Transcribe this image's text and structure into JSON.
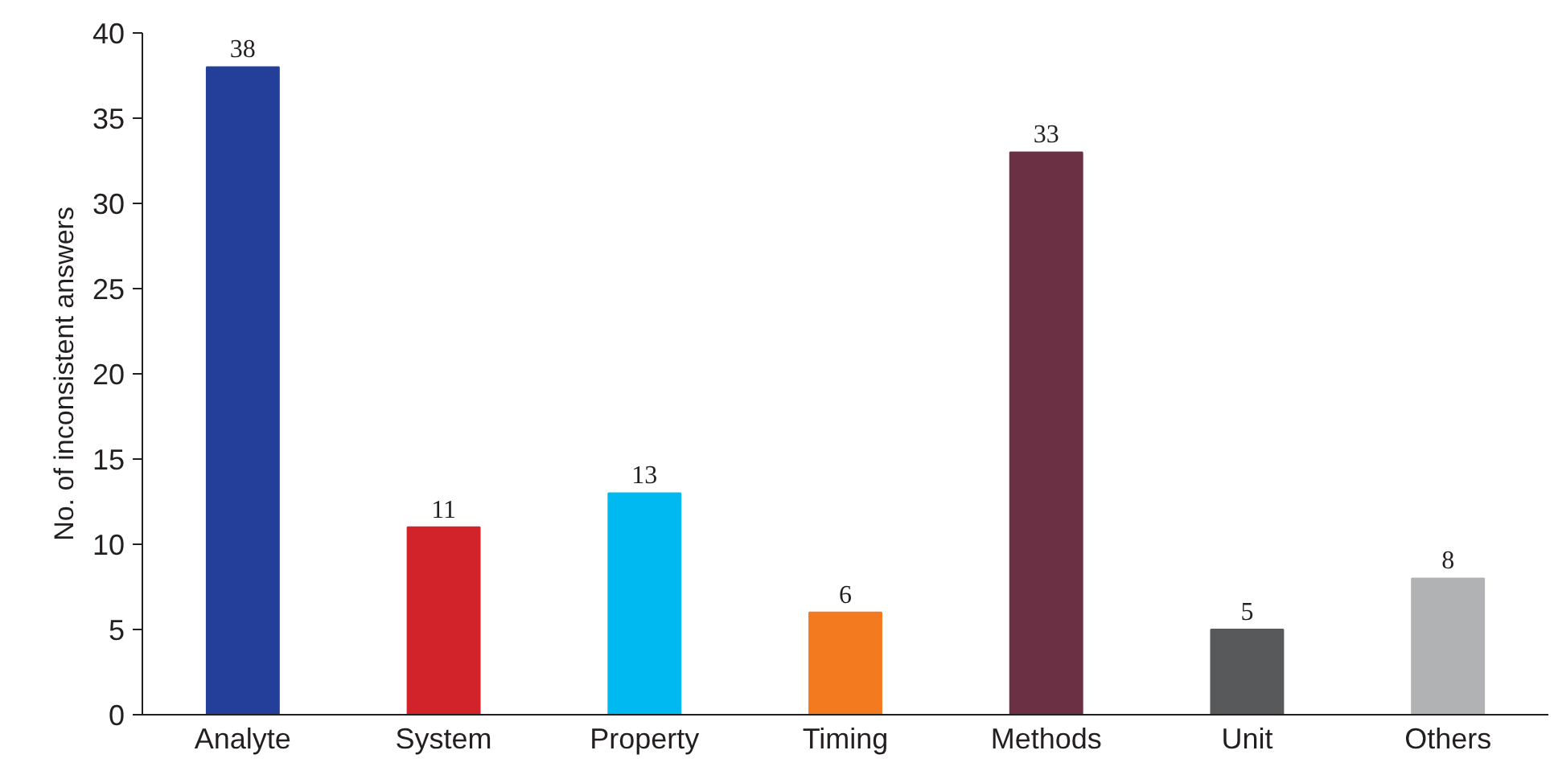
{
  "chart_data": {
    "type": "bar",
    "ylabel": "No. of inconsistent answers",
    "categories": [
      "Analyte",
      "System",
      "Property",
      "Timing",
      "Methods",
      "Unit",
      "Others"
    ],
    "values": [
      38,
      11,
      13,
      6,
      33,
      5,
      8
    ],
    "colors": [
      "#233f99",
      "#d2232a",
      "#00b9f1",
      "#f47a20",
      "#6b3043",
      "#58595b",
      "#b1b2b4"
    ],
    "ylim": [
      0,
      40
    ],
    "yticks": [
      0,
      5,
      10,
      15,
      20,
      25,
      30,
      35,
      40
    ],
    "grid": false,
    "data_labels": true
  }
}
